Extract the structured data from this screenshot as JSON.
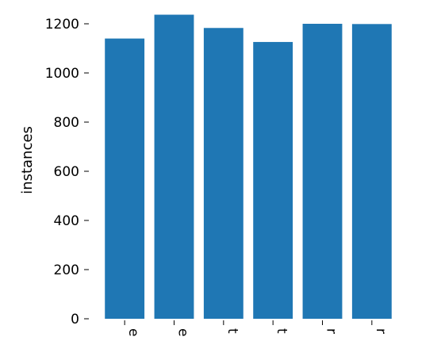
{
  "chart_data": {
    "type": "bar",
    "categories": [
      "e",
      "e",
      "t",
      "t",
      "r",
      "r"
    ],
    "values": [
      1140,
      1237,
      1183,
      1126,
      1200,
      1199
    ],
    "ylabel": "instances",
    "ylim": [
      0,
      1250
    ],
    "yticks": [
      0,
      200,
      400,
      600,
      800,
      1000,
      1200
    ],
    "xtick_rotation": 90,
    "bar_color": "#1f77b4",
    "grid": false,
    "frame": false
  }
}
